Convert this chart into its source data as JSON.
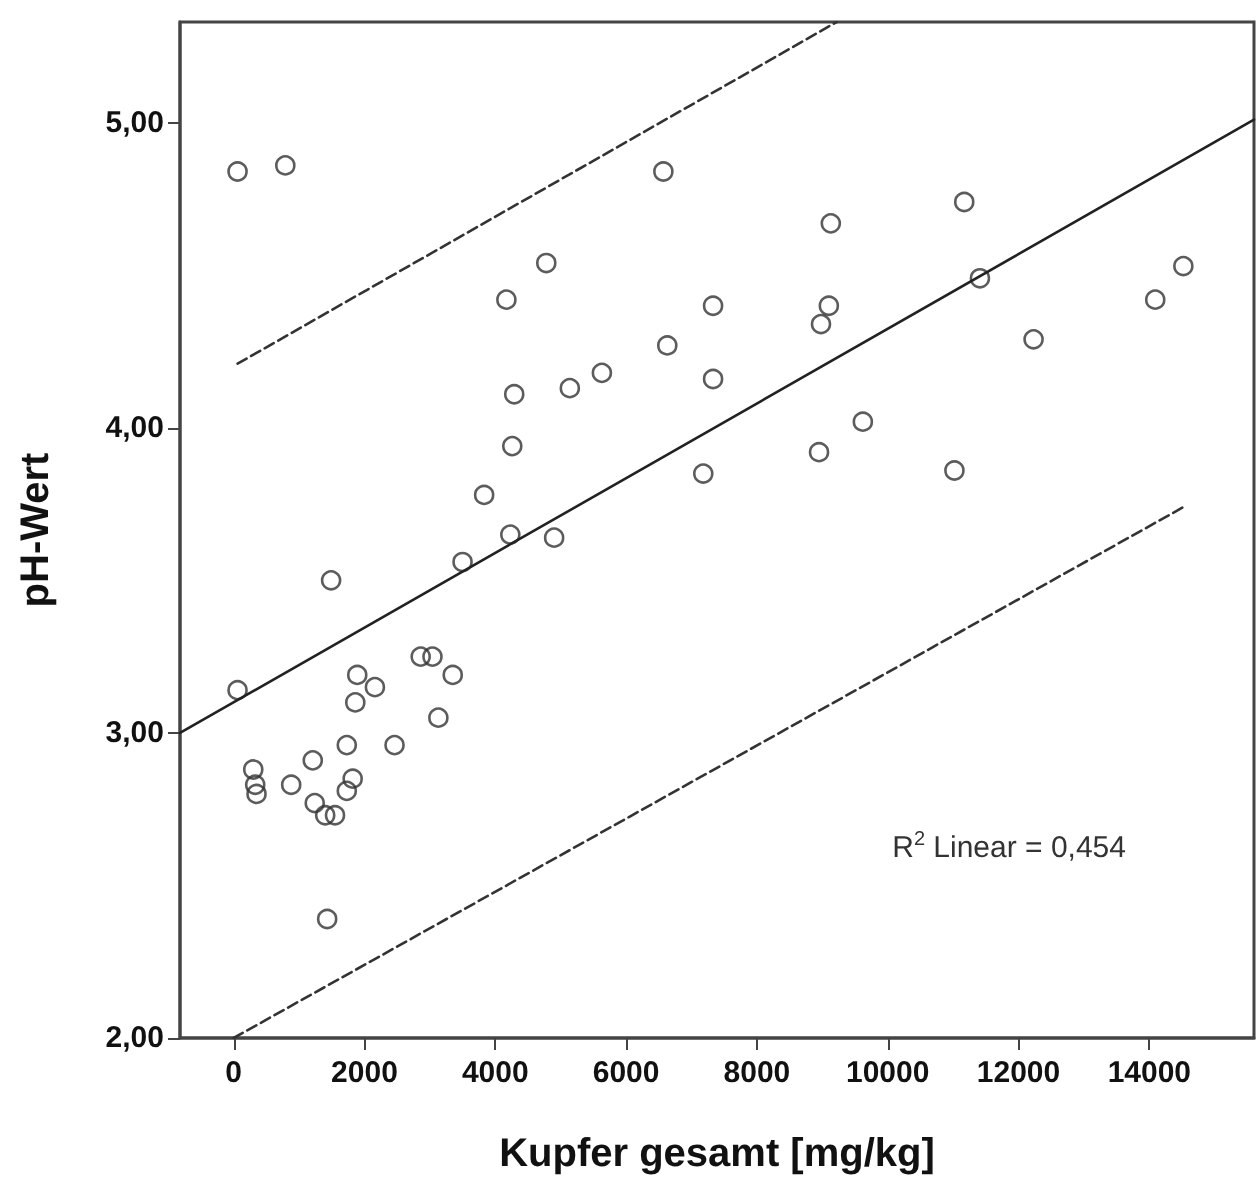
{
  "chart_data": {
    "type": "scatter",
    "xlabel": "Kupfer gesamt [mg/kg]",
    "ylabel": "pH-Wert",
    "xlim": [
      -820,
      15600
    ],
    "ylim": [
      2,
      5.33
    ],
    "xticks": [
      0,
      2000,
      4000,
      6000,
      8000,
      10000,
      12000,
      14000
    ],
    "yticks": [
      {
        "value": 2,
        "label": "2,00"
      },
      {
        "value": 3,
        "label": "3,00"
      },
      {
        "value": 4,
        "label": "4,00"
      },
      {
        "value": 5,
        "label": "5,00"
      }
    ],
    "grid": false,
    "marker": "circle",
    "annotations": [
      "R$^{2}$ Linear = 0,454"
    ],
    "series": [
      {
        "color": "#333333",
        "x": [
          60,
          790,
          4780,
          4170,
          5630,
          5140,
          4290,
          4260,
          3830,
          4230,
          4900,
          3500,
          1490,
          6570,
          9130,
          11170,
          7330,
          9100,
          8980,
          6630,
          7330,
          11410,
          14520,
          14090,
          12230,
          9620,
          8950,
          7180,
          11020,
          60,
          2860,
          3040,
          1890,
          3350,
          2160,
          1860,
          3130,
          1730,
          2460,
          300,
          1210,
          330,
          350,
          880,
          1820,
          1730,
          1240,
          1400,
          1550,
          1430
        ],
        "values": [
          4.84,
          4.86,
          4.54,
          4.42,
          4.18,
          4.13,
          4.11,
          3.94,
          3.78,
          3.65,
          3.64,
          3.56,
          3.5,
          4.84,
          4.67,
          4.74,
          4.4,
          4.4,
          4.34,
          4.27,
          4.16,
          4.49,
          4.53,
          4.42,
          4.29,
          4.02,
          3.92,
          3.85,
          3.86,
          3.14,
          3.25,
          3.25,
          3.19,
          3.19,
          3.15,
          3.1,
          3.05,
          2.96,
          2.96,
          2.88,
          2.91,
          2.83,
          2.8,
          2.83,
          2.85,
          2.81,
          2.77,
          2.73,
          2.73,
          2.39
        ]
      },
      {
        "type": "line",
        "marker": "none",
        "color": "#222222",
        "line_style": "solid",
        "x": [
          -820,
          15600
        ],
        "values": [
          3.0,
          5.01
        ]
      },
      {
        "type": "line",
        "marker": "none",
        "color": "#333333",
        "line_style": "dashed",
        "x": [
          60,
          9220
        ],
        "values": [
          4.21,
          5.33
        ]
      },
      {
        "type": "line",
        "marker": "none",
        "color": "#333333",
        "line_style": "dashed",
        "x": [
          0,
          14520
        ],
        "values": [
          2.0,
          3.74
        ]
      }
    ]
  }
}
